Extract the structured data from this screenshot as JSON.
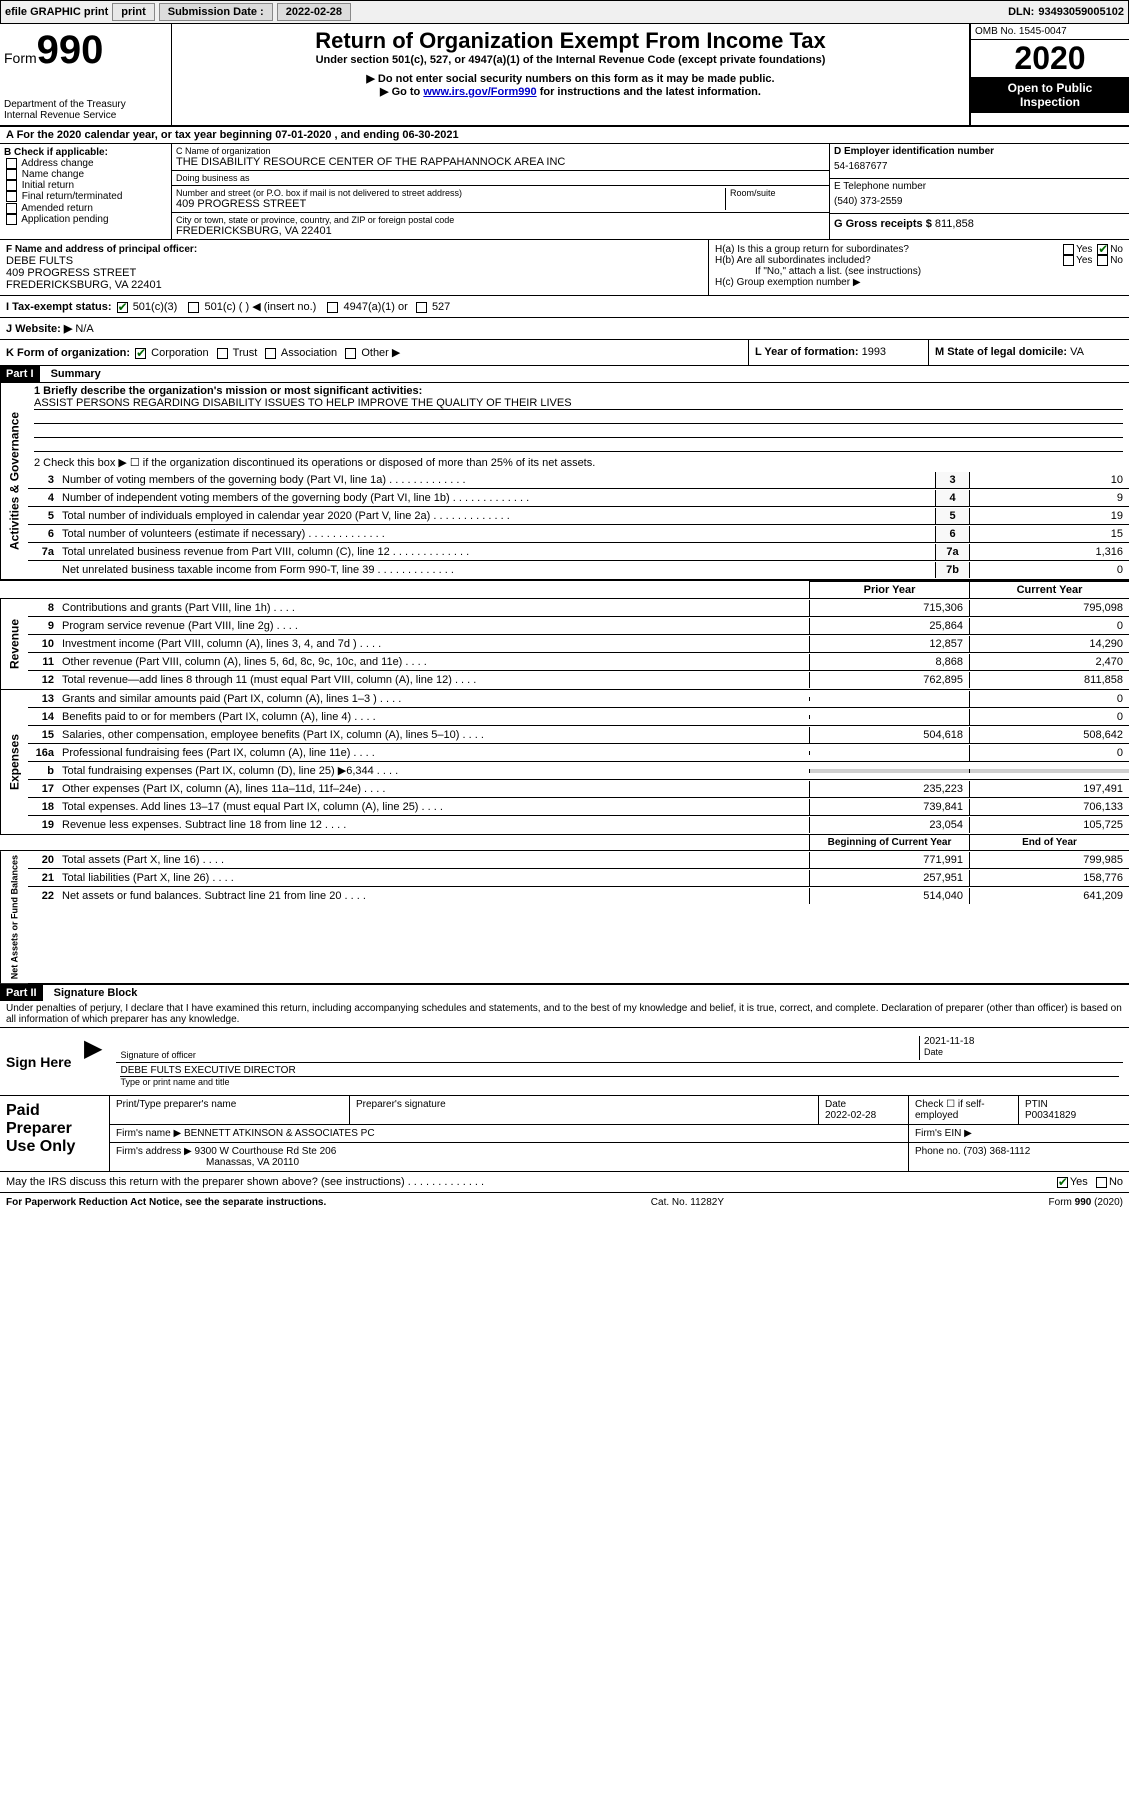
{
  "topbar": {
    "efile": "efile GRAPHIC print",
    "sub_label": "Submission Date :",
    "sub_date": "2022-02-28",
    "dln_label": "DLN:",
    "dln": "93493059005102"
  },
  "header": {
    "form_word": "Form",
    "form_num": "990",
    "dept1": "Department of the Treasury",
    "dept2": "Internal Revenue Service",
    "title": "Return of Organization Exempt From Income Tax",
    "subtitle": "Under section 501(c), 527, or 4947(a)(1) of the Internal Revenue Code (except private foundations)",
    "instr1": "▶ Do not enter social security numbers on this form as it may be made public.",
    "instr2_a": "▶ Go to ",
    "instr2_link": "www.irs.gov/Form990",
    "instr2_b": " for instructions and the latest information.",
    "omb": "OMB No. 1545-0047",
    "year": "2020",
    "open1": "Open to Public",
    "open2": "Inspection"
  },
  "period": {
    "line": "A For the 2020 calendar year, or tax year beginning 07-01-2020   , and ending 06-30-2021"
  },
  "boxB": {
    "label": "B Check if applicable:",
    "items": [
      "Address change",
      "Name change",
      "Initial return",
      "Final return/terminated",
      "Amended return",
      "Application pending"
    ]
  },
  "boxC": {
    "label": "C Name of organization",
    "name": "THE DISABILITY RESOURCE CENTER OF THE RAPPAHANNOCK AREA INC",
    "dba_label": "Doing business as",
    "dba": "",
    "addr_label": "Number and street (or P.O. box if mail is not delivered to street address)",
    "room_label": "Room/suite",
    "addr": "409 PROGRESS STREET",
    "city_label": "City or town, state or province, country, and ZIP or foreign postal code",
    "city": "FREDERICKSBURG, VA  22401"
  },
  "boxD": {
    "label": "D Employer identification number",
    "value": "54-1687677"
  },
  "boxE": {
    "label": "E Telephone number",
    "value": "(540) 373-2559"
  },
  "boxG": {
    "label": "G Gross receipts $",
    "value": "811,858"
  },
  "boxF": {
    "label": "F Name and address of principal officer:",
    "name": "DEBE FULTS",
    "addr1": "409 PROGRESS STREET",
    "addr2": "FREDERICKSBURG, VA  22401"
  },
  "boxH": {
    "a_label": "H(a)  Is this a group return for subordinates?",
    "b_label": "H(b)  Are all subordinates included?",
    "b_note": "If \"No,\" attach a list. (see instructions)",
    "c_label": "H(c)  Group exemption number ▶",
    "yes": "Yes",
    "no": "No"
  },
  "boxI": {
    "label": "I   Tax-exempt status:",
    "c501c3": "501(c)(3)",
    "c501c": "501(c) (  ) ◀ (insert no.)",
    "c4947": "4947(a)(1) or",
    "c527": "527"
  },
  "boxJ": {
    "label": "J   Website: ▶",
    "value": "N/A"
  },
  "boxK": {
    "label": "K Form of organization:",
    "corp": "Corporation",
    "trust": "Trust",
    "assoc": "Association",
    "other": "Other ▶"
  },
  "boxL": {
    "label": "L Year of formation:",
    "value": "1993"
  },
  "boxM": {
    "label": "M State of legal domicile:",
    "value": "VA"
  },
  "part1": {
    "header": "Part I",
    "title": "Summary",
    "line1_label": "1  Briefly describe the organization's mission or most significant activities:",
    "line1_value": "ASSIST PERSONS REGARDING DISABILITY ISSUES TO HELP IMPROVE THE QUALITY OF THEIR LIVES",
    "line2": "2   Check this box ▶ ☐  if the organization discontinued its operations or disposed of more than 25% of its net assets.",
    "rows_ag": [
      {
        "n": "3",
        "d": "Number of voting members of the governing body (Part VI, line 1a)",
        "box": "3",
        "v": "10"
      },
      {
        "n": "4",
        "d": "Number of independent voting members of the governing body (Part VI, line 1b)",
        "box": "4",
        "v": "9"
      },
      {
        "n": "5",
        "d": "Total number of individuals employed in calendar year 2020 (Part V, line 2a)",
        "box": "5",
        "v": "19"
      },
      {
        "n": "6",
        "d": "Total number of volunteers (estimate if necessary)",
        "box": "6",
        "v": "15"
      },
      {
        "n": "7a",
        "d": "Total unrelated business revenue from Part VIII, column (C), line 12",
        "box": "7a",
        "v": "1,316"
      },
      {
        "n": "",
        "d": "Net unrelated business taxable income from Form 990-T, line 39",
        "box": "7b",
        "v": "0"
      }
    ],
    "py_label": "Prior Year",
    "cy_label": "Current Year",
    "rows_rev": [
      {
        "n": "8",
        "d": "Contributions and grants (Part VIII, line 1h)",
        "p": "715,306",
        "c": "795,098"
      },
      {
        "n": "9",
        "d": "Program service revenue (Part VIII, line 2g)",
        "p": "25,864",
        "c": "0"
      },
      {
        "n": "10",
        "d": "Investment income (Part VIII, column (A), lines 3, 4, and 7d )",
        "p": "12,857",
        "c": "14,290"
      },
      {
        "n": "11",
        "d": "Other revenue (Part VIII, column (A), lines 5, 6d, 8c, 9c, 10c, and 11e)",
        "p": "8,868",
        "c": "2,470"
      },
      {
        "n": "12",
        "d": "Total revenue—add lines 8 through 11 (must equal Part VIII, column (A), line 12)",
        "p": "762,895",
        "c": "811,858"
      }
    ],
    "rows_exp": [
      {
        "n": "13",
        "d": "Grants and similar amounts paid (Part IX, column (A), lines 1–3 )",
        "p": "",
        "c": "0"
      },
      {
        "n": "14",
        "d": "Benefits paid to or for members (Part IX, column (A), line 4)",
        "p": "",
        "c": "0"
      },
      {
        "n": "15",
        "d": "Salaries, other compensation, employee benefits (Part IX, column (A), lines 5–10)",
        "p": "504,618",
        "c": "508,642"
      },
      {
        "n": "16a",
        "d": "Professional fundraising fees (Part IX, column (A), line 11e)",
        "p": "",
        "c": "0"
      },
      {
        "n": "b",
        "d": "Total fundraising expenses (Part IX, column (D), line 25) ▶6,344",
        "p": "gray",
        "c": "gray"
      },
      {
        "n": "17",
        "d": "Other expenses (Part IX, column (A), lines 11a–11d, 11f–24e)",
        "p": "235,223",
        "c": "197,491"
      },
      {
        "n": "18",
        "d": "Total expenses. Add lines 13–17 (must equal Part IX, column (A), line 25)",
        "p": "739,841",
        "c": "706,133"
      },
      {
        "n": "19",
        "d": "Revenue less expenses. Subtract line 18 from line 12",
        "p": "23,054",
        "c": "105,725"
      }
    ],
    "bcy_label": "Beginning of Current Year",
    "eoy_label": "End of Year",
    "rows_na": [
      {
        "n": "20",
        "d": "Total assets (Part X, line 16)",
        "p": "771,991",
        "c": "799,985"
      },
      {
        "n": "21",
        "d": "Total liabilities (Part X, line 26)",
        "p": "257,951",
        "c": "158,776"
      },
      {
        "n": "22",
        "d": "Net assets or fund balances. Subtract line 21 from line 20",
        "p": "514,040",
        "c": "641,209"
      }
    ],
    "vtext_ag": "Activities & Governance",
    "vtext_rev": "Revenue",
    "vtext_exp": "Expenses",
    "vtext_na": "Net Assets or Fund Balances"
  },
  "part2": {
    "header": "Part II",
    "title": "Signature Block",
    "decl": "Under penalties of perjury, I declare that I have examined this return, including accompanying schedules and statements, and to the best of my knowledge and belief, it is true, correct, and complete. Declaration of preparer (other than officer) is based on all information of which preparer has any knowledge."
  },
  "sign": {
    "label": "Sign Here",
    "sig_label": "Signature of officer",
    "date_label": "Date",
    "date_value": "2021-11-18",
    "name": "DEBE FULTS EXECUTIVE DIRECTOR",
    "name_label": "Type or print name and title"
  },
  "prep": {
    "label": "Paid Preparer Use Only",
    "col_name": "Print/Type preparer's name",
    "col_sig": "Preparer's signature",
    "col_date": "Date",
    "date_value": "2022-02-28",
    "col_check": "Check ☐ if self-employed",
    "col_ptin": "PTIN",
    "ptin": "P00341829",
    "firm_name_label": "Firm's name    ▶",
    "firm_name": "BENNETT ATKINSON & ASSOCIATES PC",
    "firm_ein_label": "Firm's EIN ▶",
    "firm_addr_label": "Firm's address ▶",
    "firm_addr1": "9300 W Courthouse Rd Ste 206",
    "firm_addr2": "Manassas, VA  20110",
    "phone_label": "Phone no.",
    "phone": "(703) 368-1112"
  },
  "footer": {
    "discuss": "May the IRS discuss this return with the preparer shown above? (see instructions)",
    "yes": "Yes",
    "no": "No",
    "paperwork": "For Paperwork Reduction Act Notice, see the separate instructions.",
    "cat": "Cat. No. 11282Y",
    "form": "Form 990 (2020)"
  }
}
